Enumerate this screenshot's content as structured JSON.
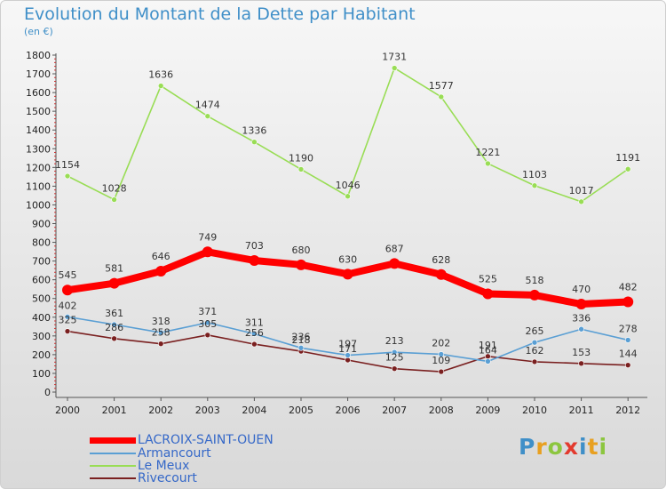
{
  "header": {
    "title": "Evolution du Montant de la Dette par Habitant",
    "subtitle": "(en €)"
  },
  "logo": {
    "text": "Proxiti",
    "colors": [
      "#3f8fc8",
      "#e8a020",
      "#8cc63f",
      "#e33a2e",
      "#3f8fc8",
      "#e8a020",
      "#8cc63f"
    ]
  },
  "chart_data": {
    "type": "line",
    "x": [
      "2000",
      "2001",
      "2002",
      "2003",
      "2004",
      "2005",
      "2006",
      "2007",
      "2008",
      "2009",
      "2010",
      "2011",
      "2012"
    ],
    "ylim": [
      0,
      1800
    ],
    "yticks": [
      0,
      100,
      200,
      300,
      400,
      500,
      600,
      700,
      800,
      900,
      1000,
      1100,
      1200,
      1300,
      1400,
      1500,
      1600,
      1700,
      1800
    ],
    "grid": false,
    "legend_position": "bottom-left",
    "series": [
      {
        "name": "LACROIX-SAINT-OUEN",
        "color": "#ff0000",
        "values": [
          545,
          581,
          646,
          749,
          703,
          680,
          630,
          687,
          628,
          525,
          518,
          470,
          482
        ]
      },
      {
        "name": "Armancourt",
        "color": "#5a9fd4",
        "values": [
          402,
          361,
          318,
          371,
          311,
          236,
          197,
          213,
          202,
          164,
          265,
          336,
          278
        ]
      },
      {
        "name": "Le Meux",
        "color": "#99dd55",
        "values": [
          1154,
          1028,
          1636,
          1474,
          1336,
          1190,
          1046,
          1731,
          1577,
          1221,
          1103,
          1017,
          1191
        ]
      },
      {
        "name": "Rivecourt",
        "color": "#7a2020",
        "values": [
          325,
          286,
          258,
          305,
          256,
          218,
          171,
          125,
          109,
          191,
          162,
          153,
          144
        ]
      }
    ]
  }
}
